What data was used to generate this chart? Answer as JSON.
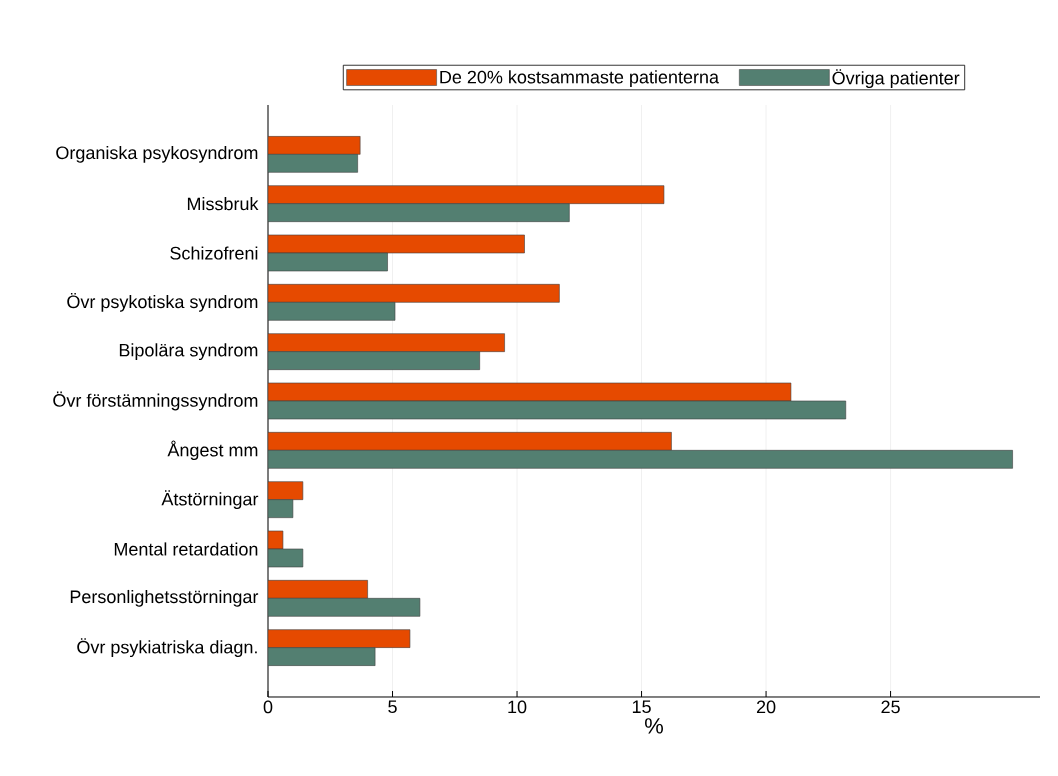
{
  "chart_data": {
    "type": "bar",
    "orientation": "horizontal",
    "xlabel": "%",
    "categories": [
      "Organiska psykosyndrom",
      "Missbruk",
      "Schizofreni",
      "Övr psykotiska syndrom",
      "Bipolära syndrom",
      "Övr förstämningssyndrom",
      "Ångest mm",
      "Ätstörningar",
      "Mental retardation",
      "Personlighetsstörningar",
      "Övr psykiatriska diagn."
    ],
    "series": [
      {
        "name": "De 20% kostsammaste patienterna",
        "color": "#e64a00",
        "values": [
          3.7,
          15.9,
          10.3,
          11.7,
          9.5,
          21.0,
          16.2,
          1.4,
          0.6,
          4.0,
          5.7
        ]
      },
      {
        "name": "Övriga patienter",
        "color": "#537f71",
        "values": [
          3.6,
          12.1,
          4.8,
          5.1,
          8.5,
          23.2,
          29.9,
          1.0,
          1.4,
          6.1,
          4.3
        ]
      }
    ],
    "xlim": [
      0,
      31
    ],
    "xticks": [
      0,
      5,
      10,
      15,
      20,
      25
    ],
    "grid": "x",
    "legend": "top"
  }
}
